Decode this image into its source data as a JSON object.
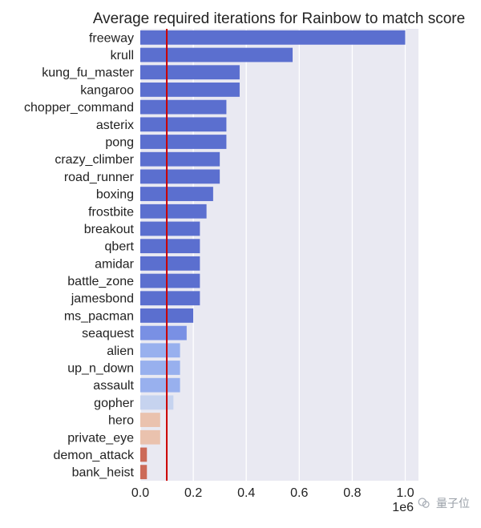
{
  "chart_data": {
    "type": "bar",
    "orientation": "horizontal",
    "title": "Average required iterations for Rainbow to match score",
    "xlabel": "",
    "ylabel": "",
    "xlim": [
      0,
      1.05
    ],
    "x_ticks": [
      "0.0",
      "0.2",
      "0.4",
      "0.6",
      "0.8",
      "1.0"
    ],
    "x_tick_values": [
      0,
      0.2,
      0.4,
      0.6,
      0.8,
      1.0
    ],
    "x_scale_text": "1e6",
    "grid": true,
    "reference_line": {
      "x": 0.1,
      "color": "#cc0000"
    },
    "categories": [
      "freeway",
      "krull",
      "kung_fu_master",
      "kangaroo",
      "chopper_command",
      "asterix",
      "pong",
      "crazy_climber",
      "road_runner",
      "boxing",
      "frostbite",
      "breakout",
      "qbert",
      "amidar",
      "battle_zone",
      "jamesbond",
      "ms_pacman",
      "seaquest",
      "alien",
      "up_n_down",
      "assault",
      "gopher",
      "hero",
      "private_eye",
      "demon_attack",
      "bank_heist"
    ],
    "values": [
      1.0,
      0.575,
      0.375,
      0.375,
      0.325,
      0.325,
      0.325,
      0.3,
      0.3,
      0.275,
      0.25,
      0.225,
      0.225,
      0.225,
      0.225,
      0.225,
      0.2,
      0.175,
      0.15,
      0.15,
      0.15,
      0.125,
      0.075,
      0.075,
      0.025,
      0.025
    ],
    "colors": [
      "#5b6fcf",
      "#5b6fcf",
      "#5b6fcf",
      "#5b6fcf",
      "#5b6fcf",
      "#5b6fcf",
      "#5b6fcf",
      "#5b6fcf",
      "#5b6fcf",
      "#5b6fcf",
      "#5b6fcf",
      "#5b6fcf",
      "#5b6fcf",
      "#5b6fcf",
      "#5b6fcf",
      "#5b6fcf",
      "#5b6fcf",
      "#7990e4",
      "#98b0ee",
      "#98b0ee",
      "#98b0ee",
      "#c6d3ef",
      "#eac2ae",
      "#eac2ae",
      "#cc6a58",
      "#cc6a58"
    ],
    "plot_background": "#e9e9f2",
    "grid_color": "#ffffff"
  },
  "watermark": {
    "text": "量子位"
  }
}
